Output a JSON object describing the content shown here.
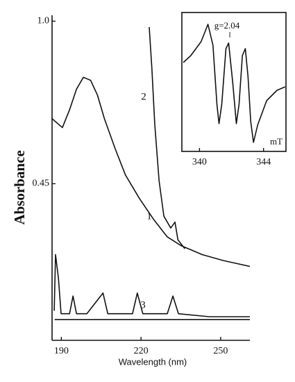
{
  "chart_data": [
    {
      "type": "line",
      "xlabel": "Wavelength (nm)",
      "ylabel": "Absorbance",
      "xlim": [
        186.5,
        261
      ],
      "ylim": [
        -0.08,
        1.02
      ],
      "xticks": [
        190,
        220,
        250
      ],
      "yticks": [
        {
          "value": 1,
          "label": "1.0"
        },
        0.45
      ],
      "grid": false,
      "color": "#111",
      "series": [
        {
          "name": "1",
          "x": [
            186.5,
            190.4,
            193.1,
            195.7,
            198.3,
            201.0,
            203.6,
            206.2,
            210.2,
            214.1,
            219.4,
            224.7,
            229.9,
            235.2,
            243.1,
            251.0,
            261.0
          ],
          "values": [
            0.67,
            0.64,
            0.7,
            0.77,
            0.81,
            0.8,
            0.75,
            0.67,
            0.57,
            0.48,
            0.4,
            0.33,
            0.27,
            0.24,
            0.21,
            0.19,
            0.17
          ]
        },
        {
          "name": "2",
          "x": [
            223.1,
            224.1,
            225.2,
            226.8,
            228.6,
            231.2,
            232.8,
            233.9,
            236.5
          ],
          "values": [
            0.98,
            0.84,
            0.65,
            0.46,
            0.34,
            0.3,
            0.32,
            0.26,
            0.23
          ]
        },
        {
          "name": "3",
          "x": [
            187.3,
            187.8,
            188.9,
            189.9,
            193.1,
            194.4,
            195.7,
            199.6,
            205.7,
            207.5,
            216.8,
            218.6,
            220.7,
            229.9,
            232.0,
            234.1,
            245.7,
            261.0
          ],
          "values": [
            0.02,
            0.21,
            0.13,
            0.01,
            0.01,
            0.07,
            0.01,
            0.01,
            0.08,
            0.01,
            0.01,
            0.08,
            0.01,
            0.01,
            0.07,
            0.01,
            0.0,
            0.0
          ]
        },
        {
          "x": [
            187.5,
            261.0
          ],
          "values": [
            -0.01,
            -0.01
          ]
        }
      ]
    },
    {
      "type": "line",
      "xlabel": "mT",
      "xlim": [
        338.9,
        345.4
      ],
      "ylim": [
        -1,
        1
      ],
      "xticks": [
        340,
        344
      ],
      "annotations": [
        "g=2.04",
        "I"
      ],
      "color": "#111",
      "series": [
        {
          "x": [
            338.99,
            339.46,
            340.1,
            340.53,
            340.84,
            341.09,
            341.22,
            341.39,
            341.65,
            341.82,
            342.08,
            342.3,
            342.47,
            342.68,
            342.86,
            343.03,
            343.2,
            343.37,
            343.63,
            344.19,
            344.84,
            345.35
          ],
          "values": [
            0.28,
            0.38,
            0.58,
            0.83,
            0.53,
            -0.32,
            -0.6,
            -0.32,
            0.48,
            0.56,
            -0.02,
            -0.6,
            -0.32,
            0.38,
            0.48,
            0.08,
            -0.57,
            -0.87,
            -0.62,
            -0.27,
            -0.12,
            -0.07
          ]
        }
      ]
    }
  ]
}
